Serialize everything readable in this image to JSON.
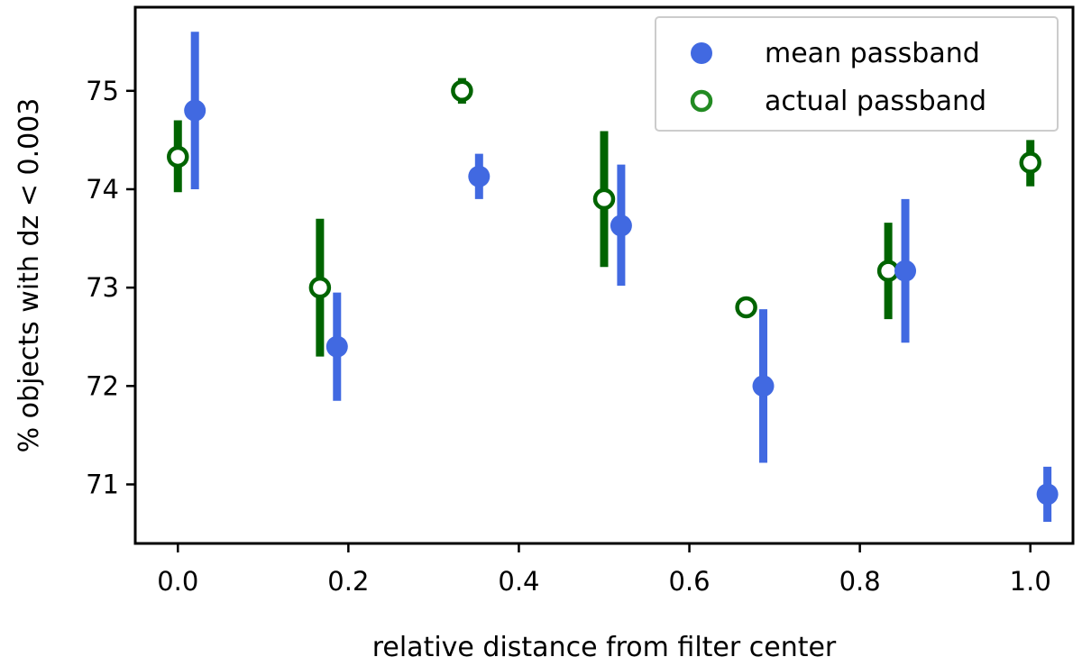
{
  "chart_data": {
    "type": "scatter",
    "title": "",
    "xlabel": "relative distance from filter center",
    "ylabel": "% objects with dz < 0.003",
    "xlim": [
      -0.05,
      1.05
    ],
    "ylim": [
      70.4,
      75.85
    ],
    "xticks": [
      0.0,
      0.2,
      0.4,
      0.6,
      0.8,
      1.0
    ],
    "xtick_labels": [
      "0.0",
      "0.2",
      "0.4",
      "0.6",
      "0.8",
      "1.0"
    ],
    "yticks": [
      71,
      72,
      73,
      74,
      75
    ],
    "ytick_labels": [
      "71",
      "72",
      "73",
      "74",
      "75"
    ],
    "grid": false,
    "legend_position": "top-right",
    "series": [
      {
        "name": "mean passband",
        "color": "#4169e1",
        "marker": "filled-circle",
        "points": [
          {
            "x": 0.0,
            "y": 74.8,
            "err_low": 74.0,
            "err_high": 75.6
          },
          {
            "x": 0.1667,
            "y": 72.4,
            "err_low": 71.85,
            "err_high": 72.95
          },
          {
            "x": 0.3333,
            "y": 74.13,
            "err_low": 73.9,
            "err_high": 74.36
          },
          {
            "x": 0.5,
            "y": 73.63,
            "err_low": 73.02,
            "err_high": 74.25
          },
          {
            "x": 0.6667,
            "y": 72.0,
            "err_low": 71.22,
            "err_high": 72.78
          },
          {
            "x": 0.8333,
            "y": 73.17,
            "err_low": 72.44,
            "err_high": 73.9
          },
          {
            "x": 1.0,
            "y": 70.9,
            "err_low": 70.62,
            "err_high": 71.18
          }
        ]
      },
      {
        "name": "actual passband",
        "color": "#006400",
        "marker": "open-circle",
        "points": [
          {
            "x": 0.0,
            "y": 74.33,
            "err_low": 73.97,
            "err_high": 74.7
          },
          {
            "x": 0.1667,
            "y": 73.0,
            "err_low": 72.3,
            "err_high": 73.7
          },
          {
            "x": 0.3333,
            "y": 75.0,
            "err_low": 74.87,
            "err_high": 75.13
          },
          {
            "x": 0.5,
            "y": 73.9,
            "err_low": 73.21,
            "err_high": 74.59
          },
          {
            "x": 0.6667,
            "y": 72.8,
            "err_low": 72.8,
            "err_high": 72.8
          },
          {
            "x": 0.8333,
            "y": 73.17,
            "err_low": 72.68,
            "err_high": 73.66
          },
          {
            "x": 1.0,
            "y": 74.27,
            "err_low": 74.03,
            "err_high": 74.5
          }
        ]
      }
    ]
  }
}
